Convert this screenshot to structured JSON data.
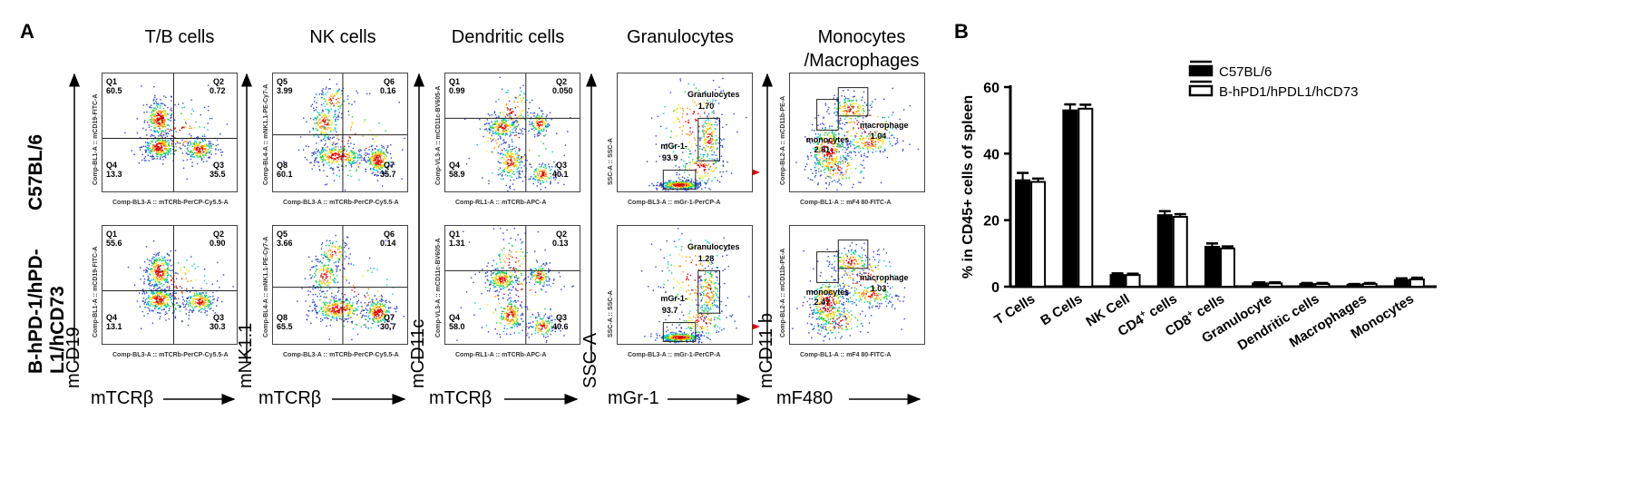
{
  "panel_a": {
    "letter": "A",
    "columns": [
      {
        "title": "T/B cells",
        "ylabel": "mCD19",
        "xlabel": "mTCRβ",
        "plot_x_axis": "Comp-BL3-A :: mTCRb-PerCP-Cy5.5-A",
        "plot_y_axis": "Comp-BL1-A :: mCD19-FITC-A"
      },
      {
        "title": "NK cells",
        "ylabel": "mNK1.1",
        "xlabel": "mTCRβ",
        "plot_x_axis": "Comp-BL3-A :: mTCRb-PerCP-Cy5.5-A",
        "plot_y_axis": "Comp-BL4-A :: mNK1.1-PE-Cy7-A"
      },
      {
        "title": "Dendritic cells",
        "ylabel": "mCD11c",
        "xlabel": "mTCRβ",
        "plot_x_axis": "Comp-RL1-A :: mTCRb-APC-A",
        "plot_y_axis": "Comp-VL3-A :: mCD11c-BV605-A"
      },
      {
        "title": "Granulocytes",
        "ylabel": "SSC-A",
        "xlabel": "mGr-1",
        "plot_x_axis": "Comp-BL3-A :: mGr-1-PerCP-A",
        "plot_y_axis": "SSC-A :: SSC-A"
      },
      {
        "title": "Monocytes\n/Macrophages",
        "title_line1": "Monocytes",
        "title_line2": "/Macrophages",
        "ylabel": "mCD11 b",
        "xlabel": "mF480",
        "plot_x_axis": "Comp-BL1-A :: mF4 80-FITC-A",
        "plot_y_axis": "Comp-BL2-A :: mCD11b-PE-A"
      }
    ],
    "rows": [
      {
        "label": "C57BL/6",
        "tb": {
          "q1_name": "Q1",
          "q1": "60.5",
          "q2_name": "Q2",
          "q2": "0.72",
          "q3_name": "Q3",
          "q3": "35.5",
          "q4_name": "Q4",
          "q4": "13.3"
        },
        "nk": {
          "q1_name": "Q5",
          "q1": "3.99",
          "q2_name": "Q6",
          "q2": "0.16",
          "q3_name": "Q7",
          "q3": "35.7",
          "q4_name": "Q8",
          "q4": "60.1"
        },
        "dc": {
          "q1_name": "Q1",
          "q1": "0.99",
          "q2_name": "Q2",
          "q2": "0.050",
          "q3_name": "Q3",
          "q3": "40.1",
          "q4_name": "Q4",
          "q4": "58.9"
        },
        "gran": {
          "gate1": "Granulocytes",
          "gate1_val": "1.70",
          "gate2": "mGr-1-",
          "gate2_val": "93.9"
        },
        "mono": {
          "gate1": "monocytes",
          "gate1_val": "2.81",
          "gate2": "macrophage",
          "gate2_val": "1.04"
        }
      },
      {
        "label_line1": "B-hPD-1/hPD-",
        "label_line2": "L1/hCD73",
        "tb": {
          "q1_name": "Q1",
          "q1": "55.6",
          "q2_name": "Q2",
          "q2": "0.90",
          "q3_name": "Q3",
          "q3": "30.3",
          "q4_name": "Q4",
          "q4": "13.1"
        },
        "nk": {
          "q1_name": "Q5",
          "q1": "3.66",
          "q2_name": "Q6",
          "q2": "0.14",
          "q3_name": "Q7",
          "q3": "30.7",
          "q4_name": "Q8",
          "q4": "65.5"
        },
        "dc": {
          "q1_name": "Q1",
          "q1": "1.31",
          "q2_name": "Q2",
          "q2": "0.13",
          "q3_name": "Q3",
          "q3": "40.6",
          "q4_name": "Q4",
          "q4": "58.0"
        },
        "gran": {
          "gate1": "Granulocytes",
          "gate1_val": "1.28",
          "gate2": "mGr-1-",
          "gate2_val": "93.7"
        },
        "mono": {
          "gate1": "monocytes",
          "gate1_val": "2.47",
          "gate2": "macrophage",
          "gate2_val": "1.03"
        }
      }
    ]
  },
  "chart_data": {
    "type": "bar",
    "panel_letter": "B",
    "ylabel": "% in CD45+ cells of spleen",
    "ylim": [
      0,
      60
    ],
    "yticks": [
      "0",
      "20",
      "40",
      "60"
    ],
    "categories": [
      "T Cells",
      "B Cells",
      "NK Cell",
      "CD4+ cells",
      "CD8+ cells",
      "Granulocyte",
      "Dendritic cells",
      "Macrophages",
      "Monocytes"
    ],
    "series": [
      {
        "name": "C57BL/6",
        "fill": "#000000",
        "values": [
          32,
          53,
          3.5,
          21.5,
          12,
          1.0,
          0.8,
          0.6,
          2.0
        ],
        "errors": [
          2.2,
          1.8,
          0.5,
          1.2,
          1.0,
          0.3,
          0.3,
          0.2,
          0.5
        ]
      },
      {
        "name": "B-hPD1/hPDL1/hCD73",
        "fill": "#ffffff",
        "values": [
          31.5,
          53.5,
          3.5,
          21,
          11.5,
          1.0,
          0.8,
          0.8,
          2.2
        ],
        "errors": [
          1.0,
          1.2,
          0.4,
          0.8,
          0.6,
          0.3,
          0.3,
          0.3,
          0.5
        ]
      }
    ],
    "legend_position": "top-right",
    "tick_label_cd4": {
      "main": "CD4",
      "sup": "+",
      "rest": " cells"
    },
    "tick_label_cd8": {
      "main": "CD8",
      "sup": "+",
      "rest": " cells"
    }
  }
}
